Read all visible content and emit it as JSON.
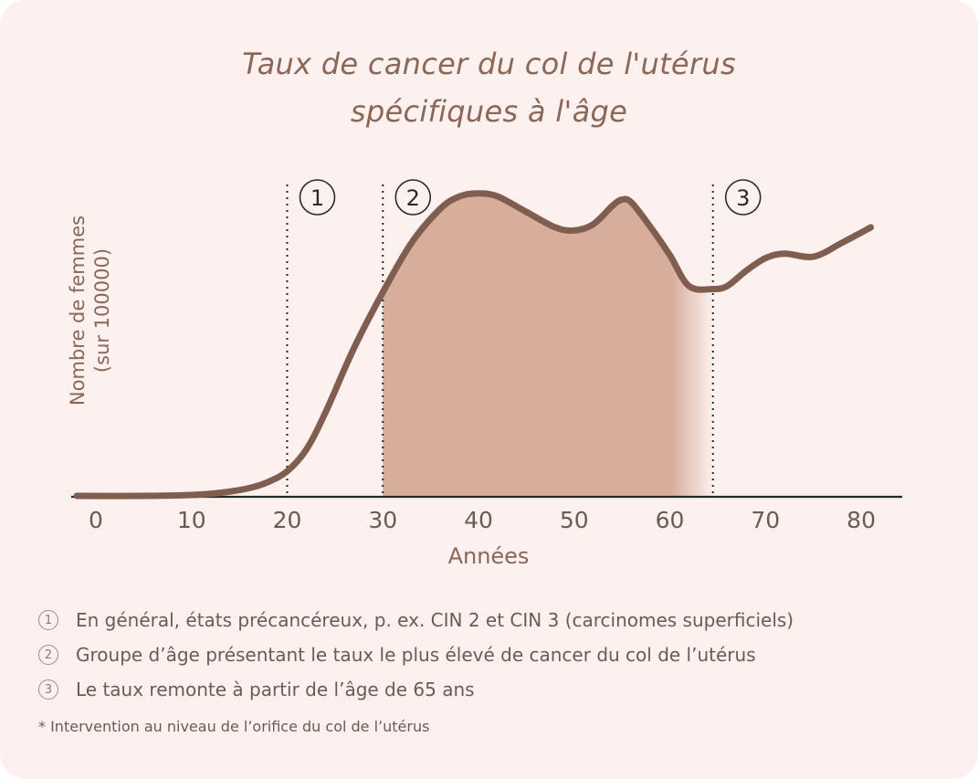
{
  "chart_data": {
    "type": "area",
    "title_lines": [
      "Taux de cancer du col de l'utérus",
      "spécifiques à l'âge"
    ],
    "xlabel": "Années",
    "ylabel_lines": [
      "Nombre de femmes",
      "(sur 100000)"
    ],
    "x_ticks": [
      0,
      10,
      20,
      30,
      40,
      50,
      60,
      70,
      80
    ],
    "xlim": [
      -2,
      84
    ],
    "ylim": [
      0,
      100
    ],
    "series": [
      {
        "x": [
          -2,
          5,
          10,
          13,
          16,
          18,
          20,
          22,
          24,
          27,
          30,
          33,
          36,
          38,
          40,
          42,
          45,
          48,
          50,
          52,
          54,
          55,
          56,
          58,
          60,
          62,
          64.5,
          66,
          68,
          70,
          72,
          75,
          78,
          81
        ],
        "y": [
          0,
          0,
          0.3,
          1,
          2.5,
          4.5,
          8,
          15,
          27,
          48,
          66,
          82,
          93,
          97,
          98,
          97,
          92,
          87,
          86,
          88,
          94,
          96,
          95,
          87,
          78,
          68,
          67,
          68,
          73,
          77,
          78.5,
          77.5,
          82,
          87
        ]
      }
    ],
    "shaded_region": [
      30,
      64.5
    ],
    "markers": [
      {
        "x": 20,
        "label": "1"
      },
      {
        "x": 30,
        "label": "2"
      },
      {
        "x": 64.5,
        "label": "3"
      }
    ],
    "colors": {
      "line": "#7f5e50",
      "fill": "#d7ad9c",
      "axis": "#1c2b27",
      "text": "#8c6656"
    }
  },
  "notes": [
    {
      "num": "1",
      "text": "En général, états précancéreux, p. ex. CIN 2 et CIN 3 (carcinomes superficiels)"
    },
    {
      "num": "2",
      "text": "Groupe d’âge présentant le taux le plus élevé de cancer du col de l’utérus"
    },
    {
      "num": "3",
      "text": "Le taux remonte à partir de l’âge de 65 ans"
    }
  ],
  "footnote": "* Intervention au niveau de l’orifice du col de l’utérus"
}
